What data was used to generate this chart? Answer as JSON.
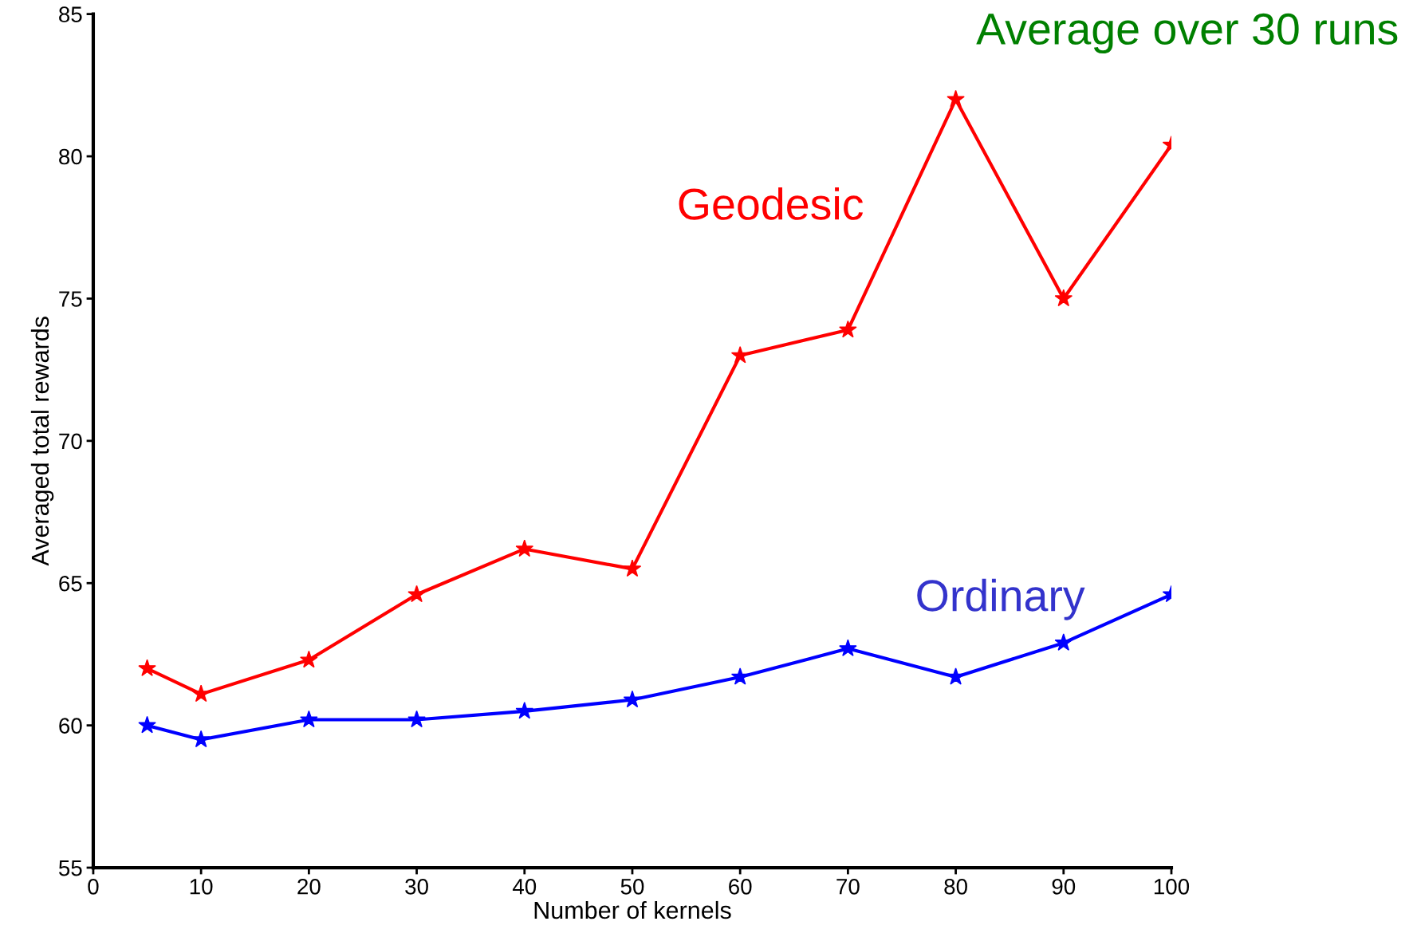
{
  "chart_data": {
    "type": "line",
    "xlabel": "Number of kernels",
    "ylabel": "Averaged total rewards",
    "x": [
      5,
      10,
      20,
      30,
      40,
      50,
      60,
      70,
      80,
      90,
      100
    ],
    "series": [
      {
        "name": "Geodesic",
        "color": "#ff0000",
        "values": [
          62.0,
          61.1,
          62.3,
          64.6,
          66.2,
          65.5,
          73.0,
          73.9,
          82.0,
          75.0,
          80.4
        ]
      },
      {
        "name": "Ordinary",
        "color": "#0000ff",
        "values": [
          60.0,
          59.5,
          60.2,
          60.2,
          60.5,
          60.9,
          61.7,
          62.7,
          61.7,
          62.9,
          64.6
        ]
      }
    ],
    "annotations": [
      "Average over 30 runs"
    ],
    "xlim": [
      0,
      100
    ],
    "xticks": [
      0,
      10,
      20,
      30,
      40,
      50,
      60,
      70,
      80,
      90,
      100
    ],
    "ylim": [
      55,
      85
    ],
    "yticks": [
      55,
      60,
      65,
      70,
      75,
      80,
      85
    ],
    "marker": "star",
    "line_style": "solid",
    "grid": false,
    "legend": false
  }
}
